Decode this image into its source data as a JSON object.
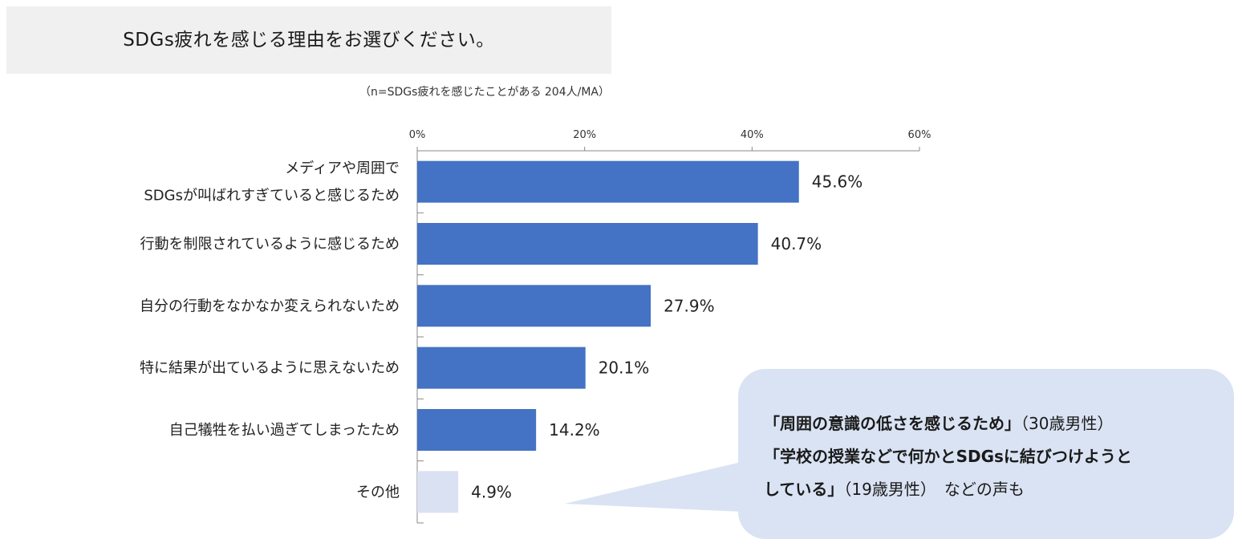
{
  "title": "SDGs疲れを感じる理由をお選びください。",
  "note": "（n=SDGs疲れを感じたことがある 204人/MA）",
  "chart_data": {
    "type": "bar",
    "orientation": "horizontal",
    "categories": [
      [
        "メディアや周囲で",
        "SDGsが叫ばれすぎていると感じるため"
      ],
      [
        "行動を制限されているように感じるため"
      ],
      [
        "自分の行動をなかなか変えられないため"
      ],
      [
        "特に結果が出ているように思えないため"
      ],
      [
        "自己犠牲を払い過ぎてしまったため"
      ],
      [
        "その他"
      ]
    ],
    "values": [
      45.6,
      40.7,
      27.9,
      20.1,
      14.2,
      4.9
    ],
    "value_labels": [
      "45.6%",
      "40.7%",
      "27.9%",
      "20.1%",
      "14.2%",
      "4.9%"
    ],
    "bar_colors": [
      "#4472c4",
      "#4472c4",
      "#4472c4",
      "#4472c4",
      "#4472c4",
      "#d9e1f2"
    ],
    "xlim": [
      0,
      60
    ],
    "ticks": [
      0,
      20,
      40,
      60
    ],
    "tick_labels": [
      "0%",
      "20%",
      "40%",
      "60%"
    ],
    "axis_position": "top",
    "grid": false,
    "legend": "none"
  },
  "callout": {
    "background": "#dae3f3",
    "line1_bold": "「周囲の意識の低さを感じるため」",
    "line1_rest": "（30歳男性）",
    "line2_bold": "「学校の授業などで何かとSDGsに結びつけようと",
    "line3_bold": "している」",
    "line3_rest": "（19歳男性）　などの声も"
  }
}
